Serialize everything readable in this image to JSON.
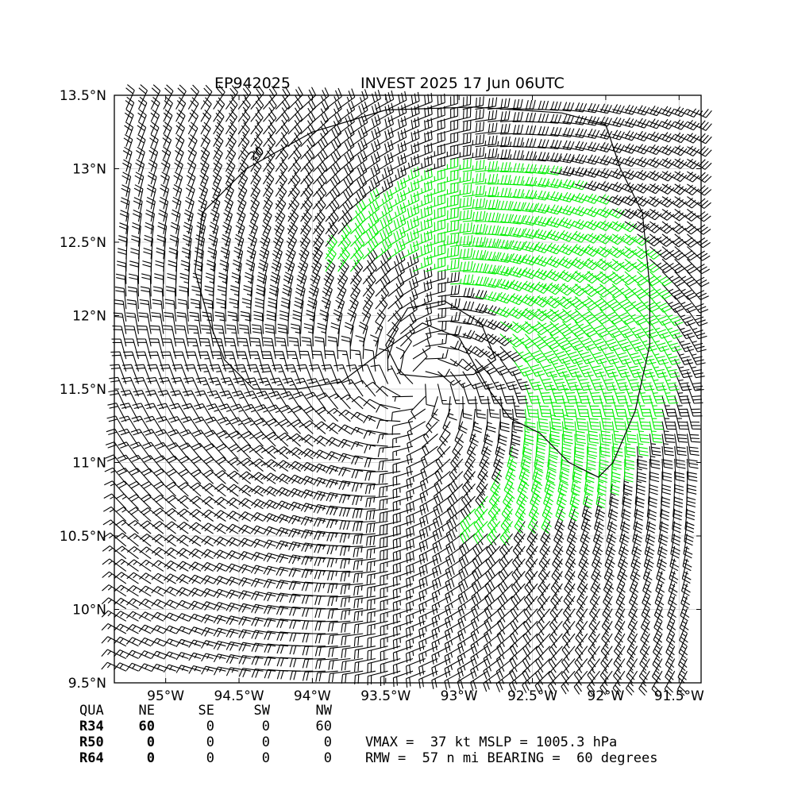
{
  "header": {
    "storm_id": "EP942025",
    "storm_title": "INVEST 2025 17 Jun 06UTC"
  },
  "colors": {
    "barb_low": "#000000",
    "barb_34kt": "#00ee00",
    "barb_50kt": "#f0a800",
    "coast": "#000000",
    "grid": "#cccccc"
  },
  "chart_data": {
    "type": "wind_barb_map",
    "x_axis": {
      "range": [
        -95.35,
        -91.35
      ],
      "ticks": [
        -95,
        -94.5,
        -94,
        -93.5,
        -93,
        -92.5,
        -92,
        -91.5
      ],
      "tick_labels": [
        "95°W",
        "94.5°W",
        "94°W",
        "93.5°W",
        "93°W",
        "92.5°W",
        "92°W",
        "91.5°W"
      ]
    },
    "y_axis": {
      "range": [
        9.5,
        13.5
      ],
      "ticks": [
        9.5,
        10,
        10.5,
        11,
        11.5,
        12,
        12.5,
        13,
        13.5
      ],
      "tick_labels": [
        "9.5°N",
        "10°N",
        "10.5°N",
        "11°N",
        "11.5°N",
        "12°N",
        "12.5°N",
        "13°N",
        "13.5°N"
      ]
    },
    "grid": true,
    "center": {
      "lon": -93.28,
      "lat": 11.55
    },
    "vmax_kt": 37,
    "rmw_nmi": 57,
    "bearing_deg": 60,
    "contour_label": "20",
    "contours": [
      {
        "kt": 20,
        "points": [
          [
            -94.7,
            11.95
          ],
          [
            -94.8,
            12.3
          ],
          [
            -94.75,
            12.7
          ],
          [
            -94.45,
            13.0
          ],
          [
            -94.0,
            13.25
          ],
          [
            -93.5,
            13.4
          ],
          [
            -92.9,
            13.42
          ],
          [
            -92.3,
            13.38
          ],
          [
            -92.0,
            13.3
          ],
          [
            -91.9,
            13.0
          ],
          [
            -91.75,
            12.7
          ],
          [
            -91.7,
            12.2
          ],
          [
            -91.7,
            11.8
          ],
          [
            -91.8,
            11.35
          ],
          [
            -91.95,
            11.0
          ],
          [
            -92.05,
            10.9
          ],
          [
            -92.25,
            11.0
          ],
          [
            -92.45,
            11.2
          ],
          [
            -92.65,
            11.3
          ],
          [
            -92.8,
            11.5
          ],
          [
            -93.0,
            11.85
          ],
          [
            -93.25,
            11.95
          ],
          [
            -93.6,
            11.7
          ],
          [
            -93.8,
            11.55
          ],
          [
            -94.1,
            11.5
          ],
          [
            -94.4,
            11.5
          ],
          [
            -94.6,
            11.7
          ],
          [
            -94.7,
            11.95
          ]
        ]
      },
      {
        "kt": 20,
        "points": [
          [
            -93.4,
            11.6
          ],
          [
            -93.5,
            11.8
          ],
          [
            -93.35,
            12.05
          ],
          [
            -93.1,
            12.1
          ],
          [
            -92.85,
            11.95
          ],
          [
            -92.75,
            11.7
          ],
          [
            -92.9,
            11.6
          ],
          [
            -93.2,
            11.58
          ],
          [
            -93.4,
            11.6
          ]
        ]
      }
    ],
    "quadrants": {
      "headers": [
        "QUA",
        "NE",
        "SE",
        "SW",
        "NW"
      ],
      "rows": [
        {
          "label": "R34",
          "values": [
            "60",
            "0",
            "0",
            "60"
          ]
        },
        {
          "label": "R50",
          "values": [
            "0",
            "0",
            "0",
            "0"
          ]
        },
        {
          "label": "R64",
          "values": [
            "0",
            "0",
            "0",
            "0"
          ]
        }
      ]
    },
    "summary_line1": "VMAX =  37 kt MSLP = 1005.3 hPa",
    "summary_line2": "RMW =  57 n mi BEARING =  60 degrees"
  }
}
